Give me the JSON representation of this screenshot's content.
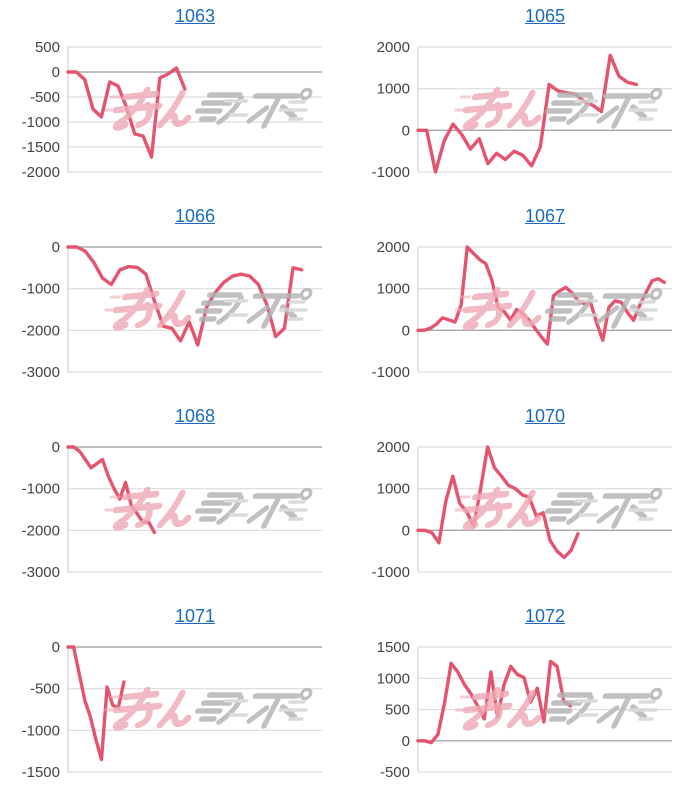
{
  "page": {
    "background": "#ffffff"
  },
  "style": {
    "line_color": "#e5546f",
    "grid_color": "#dcdcdc",
    "zero_line_color": "#a8a8a8",
    "axis_line_color": "#d2d2d2",
    "title_color": "#1a6bbd",
    "tick_label_color": "#444444",
    "watermark_pink": "#efaab6",
    "watermark_gray": "#b3b3b3",
    "watermark_gray_light": "#d4d4d4"
  },
  "watermark": {
    "name": "minrepo-logo-watermark"
  },
  "chart_data": [
    {
      "type": "line",
      "title": "1063",
      "xlabel": "",
      "ylabel": "",
      "ylim": [
        -2000,
        500
      ],
      "yticks": [
        500,
        0,
        -500,
        -1000,
        -1500,
        -2000
      ],
      "grid": true,
      "legend": "none",
      "x_span_fraction": 0.46,
      "values": [
        0,
        0,
        -150,
        -740,
        -900,
        -200,
        -280,
        -700,
        -1240,
        -1280,
        -1700,
        -120,
        -40,
        80,
        -340
      ]
    },
    {
      "type": "line",
      "title": "1065",
      "xlabel": "",
      "ylabel": "",
      "ylim": [
        -1000,
        2000
      ],
      "yticks": [
        2000,
        1000,
        0,
        -1000
      ],
      "grid": true,
      "legend": "none",
      "x_span_fraction": 0.86,
      "values": [
        0,
        0,
        -1000,
        -250,
        150,
        -100,
        -450,
        -200,
        -800,
        -550,
        -700,
        -500,
        -600,
        -850,
        -400,
        1100,
        950,
        900,
        870,
        700,
        600,
        450,
        1800,
        1300,
        1150,
        1100
      ]
    },
    {
      "type": "line",
      "title": "1066",
      "xlabel": "",
      "ylabel": "",
      "ylim": [
        -3000,
        0
      ],
      "yticks": [
        0,
        -1000,
        -2000,
        -3000
      ],
      "grid": true,
      "legend": "none",
      "x_span_fraction": 0.92,
      "values": [
        0,
        0,
        -100,
        -380,
        -750,
        -900,
        -550,
        -470,
        -490,
        -650,
        -1300,
        -1900,
        -1950,
        -2250,
        -1800,
        -2350,
        -1450,
        -1100,
        -850,
        -700,
        -650,
        -700,
        -900,
        -1400,
        -2150,
        -1950,
        -500,
        -550
      ]
    },
    {
      "type": "line",
      "title": "1067",
      "xlabel": "",
      "ylabel": "",
      "ylim": [
        -1000,
        2000
      ],
      "yticks": [
        2000,
        1000,
        0,
        -1000
      ],
      "grid": true,
      "legend": "none",
      "x_span_fraction": 0.97,
      "values": [
        0,
        0,
        50,
        150,
        300,
        250,
        200,
        600,
        2000,
        1850,
        1700,
        1600,
        1200,
        550,
        450,
        250,
        500,
        400,
        250,
        50,
        -150,
        -330,
        830,
        950,
        1030,
        900,
        710,
        640,
        670,
        190,
        -240,
        550,
        710,
        670,
        430,
        240,
        600,
        900,
        1190,
        1240,
        1150
      ]
    },
    {
      "type": "line",
      "title": "1068",
      "xlabel": "",
      "ylabel": "",
      "ylim": [
        -3000,
        0
      ],
      "yticks": [
        0,
        -1000,
        -2000,
        -3000
      ],
      "grid": true,
      "legend": "none",
      "x_span_fraction": 0.34,
      "values": [
        0,
        0,
        -100,
        -300,
        -500,
        -400,
        -300,
        -700,
        -1000,
        -1250,
        -850,
        -1400,
        -1600,
        -1800,
        -1800,
        -2050
      ]
    },
    {
      "type": "line",
      "title": "1070",
      "xlabel": "",
      "ylabel": "",
      "ylim": [
        -1000,
        2000
      ],
      "yticks": [
        2000,
        1000,
        0,
        -1000
      ],
      "grid": true,
      "legend": "none",
      "x_span_fraction": 0.63,
      "values": [
        0,
        0,
        -60,
        -300,
        700,
        1300,
        650,
        450,
        100,
        1000,
        2000,
        1500,
        1300,
        1080,
        1000,
        850,
        790,
        340,
        420,
        -250,
        -500,
        -650,
        -480,
        -80
      ]
    },
    {
      "type": "line",
      "title": "1071",
      "xlabel": "",
      "ylabel": "",
      "ylim": [
        -1500,
        0
      ],
      "yticks": [
        0,
        -500,
        -1000,
        -1500
      ],
      "grid": true,
      "legend": "none",
      "x_span_fraction": 0.22,
      "values": [
        0,
        0,
        -320,
        -640,
        -840,
        -1110,
        -1350,
        -480,
        -700,
        -730,
        -420
      ]
    },
    {
      "type": "line",
      "title": "1072",
      "xlabel": "",
      "ylabel": "",
      "ylim": [
        -500,
        1500
      ],
      "yticks": [
        1500,
        1000,
        500,
        0,
        -500
      ],
      "grid": true,
      "legend": "none",
      "x_span_fraction": 0.6,
      "values": [
        0,
        0,
        -30,
        100,
        600,
        1240,
        1100,
        900,
        750,
        560,
        350,
        1100,
        380,
        900,
        1190,
        1060,
        1010,
        620,
        840,
        300,
        1270,
        1190,
        630,
        560
      ]
    }
  ]
}
